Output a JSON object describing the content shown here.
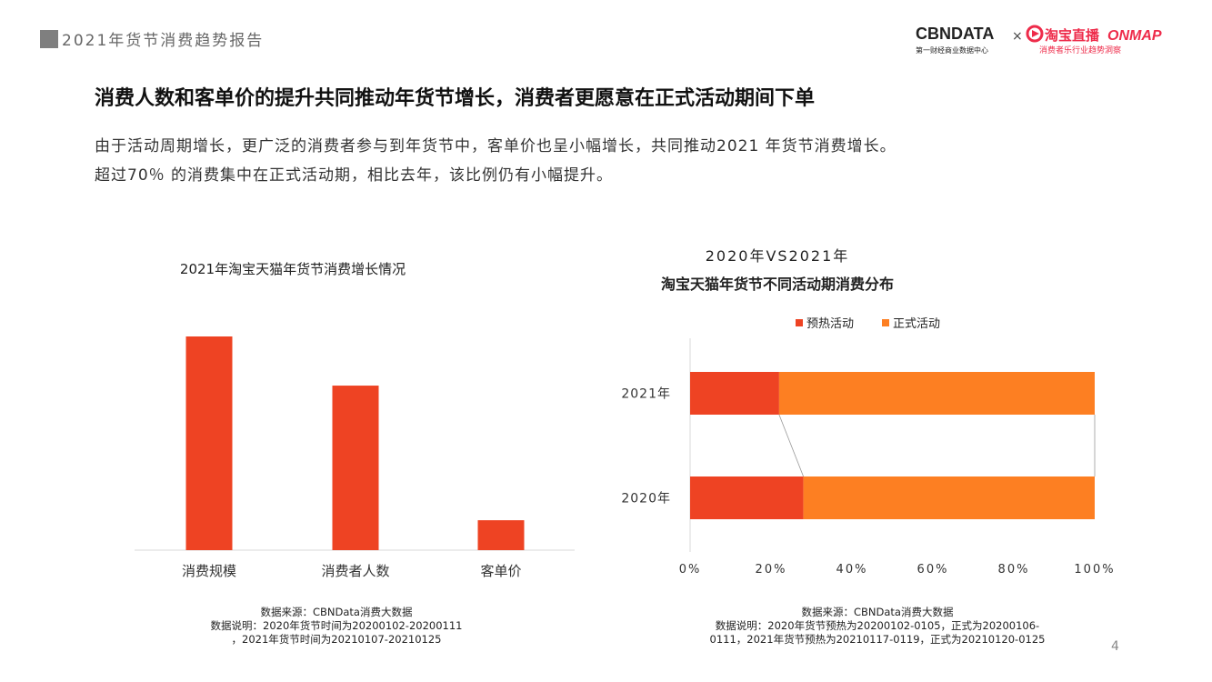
{
  "header": {
    "report_title": "2021年货节消费趋势报告",
    "logo": {
      "brand1": "CBNDATA",
      "brand1_sub": "第一财经商业数据中心",
      "cross": "×",
      "brand2": "淘宝直播",
      "brand3": "ONMAP",
      "brand2_sub": "消费者乐行业趋势洞察"
    }
  },
  "headline": "消费人数和客单价的提升共同推动年货节增长，消费者更愿意在正式活动期间下单",
  "description": [
    "由于活动周期增长，更广泛的消费者参与到年货节中，客单价也呈小幅增长，共同推动2021 年货节消费增长。",
    "超过70％ 的消费集中在正式活动期，相比去年，该比例仍有小幅提升。"
  ],
  "colors": {
    "red": "#ee4323",
    "orange": "#fd7f22",
    "axis": "#d9d9d9"
  },
  "chart_data": [
    {
      "type": "bar",
      "title": "2021年淘宝天猫年货节消费增长情况",
      "categories": [
        "消费规模",
        "消费者人数",
        "客单价"
      ],
      "values": [
        100,
        77,
        14
      ],
      "ylim": [
        0,
        100
      ],
      "grid": false,
      "color": "#ee4323"
    },
    {
      "type": "bar",
      "orientation": "horizontal-stacked-100",
      "title_lines": [
        "2020年VS2021年",
        "淘宝天猫年货节不同活动期消费分布"
      ],
      "categories": [
        "2021年",
        "2020年"
      ],
      "series": [
        {
          "name": "预热活动",
          "values": [
            22,
            28
          ],
          "color": "#ee4323"
        },
        {
          "name": "正式活动",
          "values": [
            78,
            72
          ],
          "color": "#fd7f22"
        }
      ],
      "x_ticks": [
        "0%",
        "20%",
        "40%",
        "60%",
        "80%",
        "100%"
      ],
      "xlim": [
        0,
        100
      ],
      "legend": "top-center",
      "grid": false
    }
  ],
  "notes": {
    "left": [
      "数据来源：CBNData消费大数据",
      "数据说明：2020年货节时间为20200102-20200111",
      "，2021年货节时间为20210107-20210125"
    ],
    "right": [
      "数据来源：CBNData消费大数据",
      "数据说明：2020年货节预热为20200102-0105，正式为20200106-",
      "0111，2021年货节预热为20210117-0119，正式为20210120-0125"
    ]
  },
  "page_number": "4"
}
